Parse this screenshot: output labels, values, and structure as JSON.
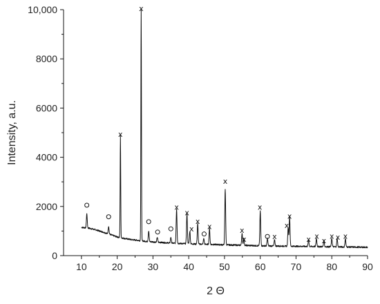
{
  "chart_data": {
    "type": "line",
    "title": "",
    "xlabel": "2 Θ",
    "ylabel": "Intensity, a.u.",
    "xlim": [
      5,
      90
    ],
    "ylim": [
      0,
      10000
    ],
    "xticks": [
      10,
      20,
      30,
      40,
      50,
      60,
      70,
      80,
      90
    ],
    "yticks": [
      0,
      2000,
      4000,
      6000,
      8000,
      10000
    ],
    "ytick_labels": [
      "0",
      "2000",
      "4000",
      "6000",
      "8000",
      "10,000"
    ],
    "grid": false,
    "series": [
      {
        "color": "#111111",
        "baseline": [
          [
            10.0,
            1150
          ],
          [
            12.0,
            1120
          ],
          [
            14.0,
            1050
          ],
          [
            16.0,
            960
          ],
          [
            18.0,
            860
          ],
          [
            20.0,
            760
          ],
          [
            22.0,
            700
          ],
          [
            24.0,
            650
          ],
          [
            26.0,
            620
          ],
          [
            28.0,
            580
          ],
          [
            30.0,
            560
          ],
          [
            35.0,
            510
          ],
          [
            40.0,
            480
          ],
          [
            45.0,
            460
          ],
          [
            50.0,
            440
          ],
          [
            55.0,
            420
          ],
          [
            60.0,
            400
          ],
          [
            65.0,
            390
          ],
          [
            70.0,
            380
          ],
          [
            75.0,
            370
          ],
          [
            80.0,
            360
          ],
          [
            85.0,
            350
          ],
          [
            90.0,
            340
          ]
        ],
        "peaks": [
          [
            11.5,
            1700
          ],
          [
            17.6,
            1200
          ],
          [
            20.9,
            4900
          ],
          [
            26.7,
            10000
          ],
          [
            28.8,
            1000
          ],
          [
            31.2,
            750
          ],
          [
            35.0,
            750
          ],
          [
            36.6,
            1900
          ],
          [
            39.5,
            1700
          ],
          [
            40.3,
            1000
          ],
          [
            42.5,
            1300
          ],
          [
            44.2,
            700
          ],
          [
            45.8,
            1100
          ],
          [
            50.2,
            2700
          ],
          [
            54.9,
            900
          ],
          [
            55.4,
            700
          ],
          [
            60.0,
            1800
          ],
          [
            62.0,
            700
          ],
          [
            64.0,
            650
          ],
          [
            67.8,
            1150
          ],
          [
            68.2,
            1600
          ],
          [
            73.5,
            650
          ],
          [
            75.7,
            700
          ],
          [
            77.8,
            600
          ],
          [
            80.0,
            700
          ],
          [
            81.5,
            700
          ],
          [
            83.8,
            700
          ]
        ]
      }
    ],
    "annotations": [
      {
        "symbol": "o",
        "x": 11.5,
        "y": 2050
      },
      {
        "symbol": "o",
        "x": 17.6,
        "y": 1580
      },
      {
        "symbol": "x",
        "x": 20.9,
        "y": 4950
      },
      {
        "symbol": "x",
        "x": 26.7,
        "y": 10050
      },
      {
        "symbol": "o",
        "x": 28.8,
        "y": 1380
      },
      {
        "symbol": "o",
        "x": 31.3,
        "y": 960
      },
      {
        "symbol": "o",
        "x": 35.0,
        "y": 1090
      },
      {
        "symbol": "x",
        "x": 36.6,
        "y": 1980
      },
      {
        "symbol": "x",
        "x": 39.5,
        "y": 1750
      },
      {
        "symbol": "x",
        "x": 40.8,
        "y": 1100
      },
      {
        "symbol": "x",
        "x": 42.5,
        "y": 1400
      },
      {
        "symbol": "o",
        "x": 44.3,
        "y": 880
      },
      {
        "symbol": "x",
        "x": 45.8,
        "y": 1200
      },
      {
        "symbol": "x",
        "x": 50.2,
        "y": 3030
      },
      {
        "symbol": "x",
        "x": 54.9,
        "y": 1040
      },
      {
        "symbol": "x",
        "x": 55.5,
        "y": 680
      },
      {
        "symbol": "x",
        "x": 59.9,
        "y": 1980
      },
      {
        "symbol": "o",
        "x": 62.0,
        "y": 780
      },
      {
        "symbol": "x",
        "x": 64.0,
        "y": 780
      },
      {
        "symbol": "x",
        "x": 67.4,
        "y": 1230
      },
      {
        "symbol": "x",
        "x": 68.2,
        "y": 1620
      },
      {
        "symbol": "x",
        "x": 73.5,
        "y": 680
      },
      {
        "symbol": "x",
        "x": 75.8,
        "y": 800
      },
      {
        "symbol": "x",
        "x": 77.8,
        "y": 620
      },
      {
        "symbol": "x",
        "x": 80.0,
        "y": 800
      },
      {
        "symbol": "x",
        "x": 81.7,
        "y": 760
      },
      {
        "symbol": "x",
        "x": 83.8,
        "y": 800
      }
    ]
  }
}
